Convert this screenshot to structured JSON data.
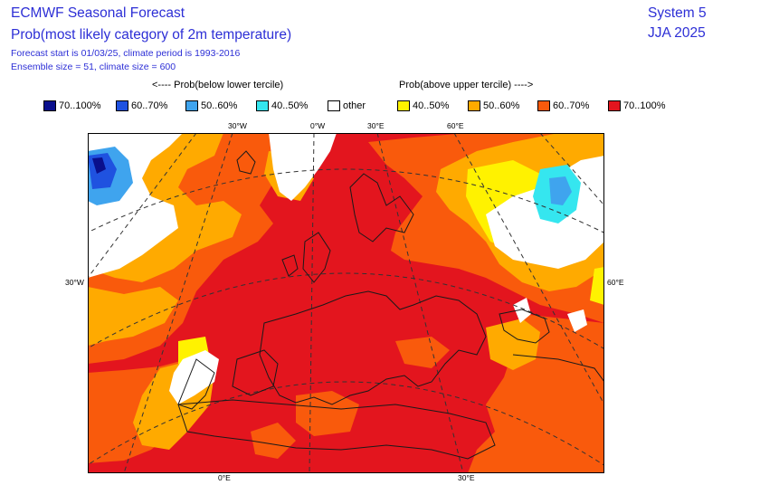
{
  "header": {
    "title": "ECMWF Seasonal Forecast",
    "subtitle": "Prob(most likely category of 2m temperature)",
    "forecast_info": "Forecast start is 01/03/25, climate period is 1993-2016",
    "ensemble_info": "Ensemble size = 51, climate size = 600",
    "system": "System 5",
    "season": "JJA 2025"
  },
  "legend": {
    "below_heading": "<---- Prob(below lower tercile)",
    "above_heading": "Prob(above upper tercile) ---->",
    "items": [
      {
        "label": "70..100%",
        "color": "#0a0f8c"
      },
      {
        "label": "60..70%",
        "color": "#1f52e0"
      },
      {
        "label": "50..60%",
        "color": "#3fa4ee"
      },
      {
        "label": "40..50%",
        "color": "#35e6ef"
      },
      {
        "label": "other",
        "color": "#ffffff"
      },
      {
        "label": "40..50%",
        "color": "#fff200"
      },
      {
        "label": "50..60%",
        "color": "#ffaa00"
      },
      {
        "label": "60..70%",
        "color": "#f95a0c"
      },
      {
        "label": "70..100%",
        "color": "#e3151e"
      }
    ]
  },
  "map": {
    "projection": "polar stereographic, Europe",
    "axis_labels": {
      "top_30w": "30°W",
      "top_0w": "0°W",
      "top_30e": "30°E",
      "top_60e": "60°E",
      "left_30w": "30°W",
      "right_60e": "60°E",
      "bottom_0e": "0°E",
      "bottom_30e": "30°E"
    },
    "dominant_category_color": "#e3151e"
  }
}
